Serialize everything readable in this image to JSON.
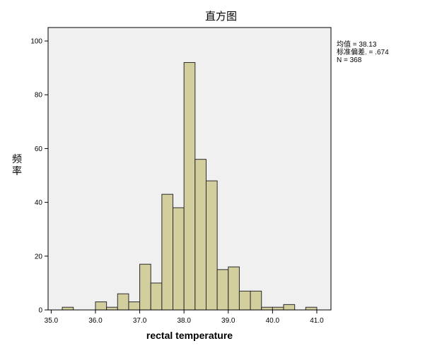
{
  "chart_data": {
    "type": "bar",
    "title": "直方图",
    "xlabel": "rectal temperature",
    "ylabel": "频率",
    "xlim": [
      34.93,
      41.32
    ],
    "ylim": [
      0,
      105
    ],
    "x_ticks": [
      "35.0",
      "36.0",
      "37.0",
      "38.0",
      "39.0",
      "40.0",
      "41.0"
    ],
    "y_ticks": [
      "0",
      "20",
      "40",
      "60",
      "80",
      "100"
    ],
    "bin_width": 0.25,
    "bins": [
      {
        "x0": 35.25,
        "x1": 35.5,
        "count": 1
      },
      {
        "x0": 36.0,
        "x1": 36.25,
        "count": 3
      },
      {
        "x0": 36.25,
        "x1": 36.5,
        "count": 1
      },
      {
        "x0": 36.5,
        "x1": 36.75,
        "count": 6
      },
      {
        "x0": 36.75,
        "x1": 37.0,
        "count": 3
      },
      {
        "x0": 37.0,
        "x1": 37.25,
        "count": 17
      },
      {
        "x0": 37.25,
        "x1": 37.5,
        "count": 10
      },
      {
        "x0": 37.5,
        "x1": 37.75,
        "count": 43
      },
      {
        "x0": 37.75,
        "x1": 38.0,
        "count": 38
      },
      {
        "x0": 38.0,
        "x1": 38.25,
        "count": 92
      },
      {
        "x0": 38.25,
        "x1": 38.5,
        "count": 56
      },
      {
        "x0": 38.5,
        "x1": 38.75,
        "count": 48
      },
      {
        "x0": 38.75,
        "x1": 39.0,
        "count": 15
      },
      {
        "x0": 39.0,
        "x1": 39.25,
        "count": 16
      },
      {
        "x0": 39.25,
        "x1": 39.5,
        "count": 7
      },
      {
        "x0": 39.5,
        "x1": 39.75,
        "count": 7
      },
      {
        "x0": 39.75,
        "x1": 40.0,
        "count": 1
      },
      {
        "x0": 40.0,
        "x1": 40.25,
        "count": 1
      },
      {
        "x0": 40.25,
        "x1": 40.5,
        "count": 2
      },
      {
        "x0": 40.75,
        "x1": 41.0,
        "count": 1
      }
    ],
    "legend": {
      "placement": "right",
      "mean_label": "均值 = 38.13",
      "sd_label": "标准偏差. = .674",
      "n_label": "N = 368"
    },
    "grid": false,
    "colors": {
      "bar_fill": "#d3ce9d",
      "bar_stroke": "#2b2b2b",
      "plot_background": "#f0f0f0"
    }
  }
}
